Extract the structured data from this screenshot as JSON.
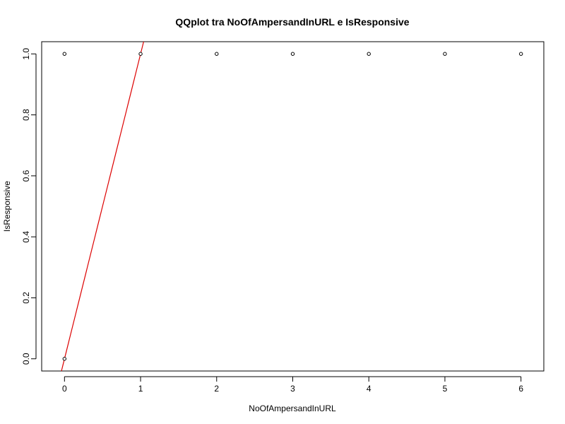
{
  "chart_data": {
    "type": "scatter",
    "title": "QQplot tra NoOfAmpersandInURL e IsResponsive",
    "xlabel": "NoOfAmpersandInURL",
    "ylabel": "IsResponsive",
    "xlim": [
      -0.3,
      6.3
    ],
    "ylim": [
      -0.04,
      1.04
    ],
    "x_ticks": [
      0,
      1,
      2,
      3,
      4,
      5,
      6
    ],
    "y_ticks": [
      0.0,
      0.2,
      0.4,
      0.6,
      0.8,
      1.0
    ],
    "x_tick_labels": [
      "0",
      "1",
      "2",
      "3",
      "4",
      "5",
      "6"
    ],
    "y_tick_labels": [
      "0.0",
      "0.2",
      "0.4",
      "0.6",
      "0.8",
      "1.0"
    ],
    "points": [
      {
        "x": 0,
        "y": 0
      },
      {
        "x": 0,
        "y": 1
      },
      {
        "x": 1,
        "y": 1
      },
      {
        "x": 2,
        "y": 1
      },
      {
        "x": 3,
        "y": 1
      },
      {
        "x": 4,
        "y": 1
      },
      {
        "x": 5,
        "y": 1
      },
      {
        "x": 6,
        "y": 1
      }
    ],
    "reference_line": {
      "intercept": 0,
      "slope": 1,
      "color": "#dd0000"
    },
    "grid": false,
    "legend": false
  }
}
